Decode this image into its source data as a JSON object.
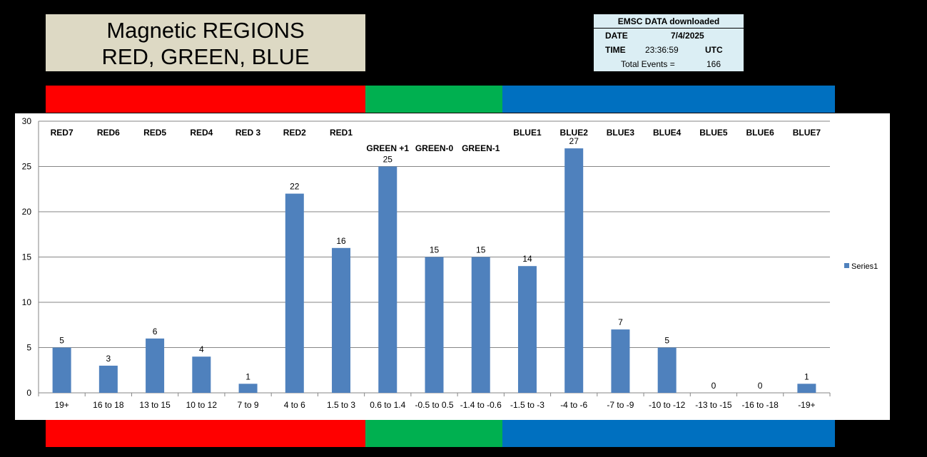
{
  "title": {
    "line1": "Magnetic REGIONS",
    "line2": "RED, GREEN, BLUE"
  },
  "info": {
    "header": "EMSC DATA downloaded",
    "date_label": "DATE",
    "date_value": "7/4/2025",
    "time_label": "TIME",
    "time_value": "23:36:59",
    "time_zone": "UTC",
    "total_label": "Total Events  =",
    "total_value": "166"
  },
  "colors": {
    "red": "#ff0000",
    "green": "#00b050",
    "blue": "#0070c0",
    "bar": "#4f81bd",
    "gridline": "#868686"
  },
  "chart_data": {
    "type": "bar",
    "categories": [
      "19+",
      "16 to 18",
      "13 to 15",
      "10 to 12",
      "7 to 9",
      "4 to 6",
      "1.5 to 3",
      "0.6 to 1.4",
      "-0.5 to 0.5",
      "-1.4 to -0.6",
      "-1.5 to -3",
      "-4 to -6",
      "-7 to -9",
      "-10 to -12",
      "-13 to -15",
      "-16 to -18",
      "-19+"
    ],
    "series": [
      {
        "name": "Series1",
        "values": [
          5,
          3,
          6,
          4,
          1,
          22,
          16,
          25,
          15,
          15,
          14,
          27,
          7,
          5,
          0,
          0,
          1
        ]
      }
    ],
    "region_labels": [
      "RED7",
      "RED6",
      "RED5",
      "RED4",
      "RED 3",
      "RED2",
      "RED1",
      "GREEN +1",
      "GREEN-0",
      "GREEN-1",
      "BLUE1",
      "BLUE2",
      "BLUE3",
      "BLUE4",
      "BLUE5",
      "BLUE6",
      "BLUE7"
    ],
    "ylim": [
      0,
      30
    ],
    "yticks": [
      0,
      5,
      10,
      15,
      20,
      25,
      30
    ],
    "grid": true,
    "legend": "right",
    "data_labels": true
  }
}
